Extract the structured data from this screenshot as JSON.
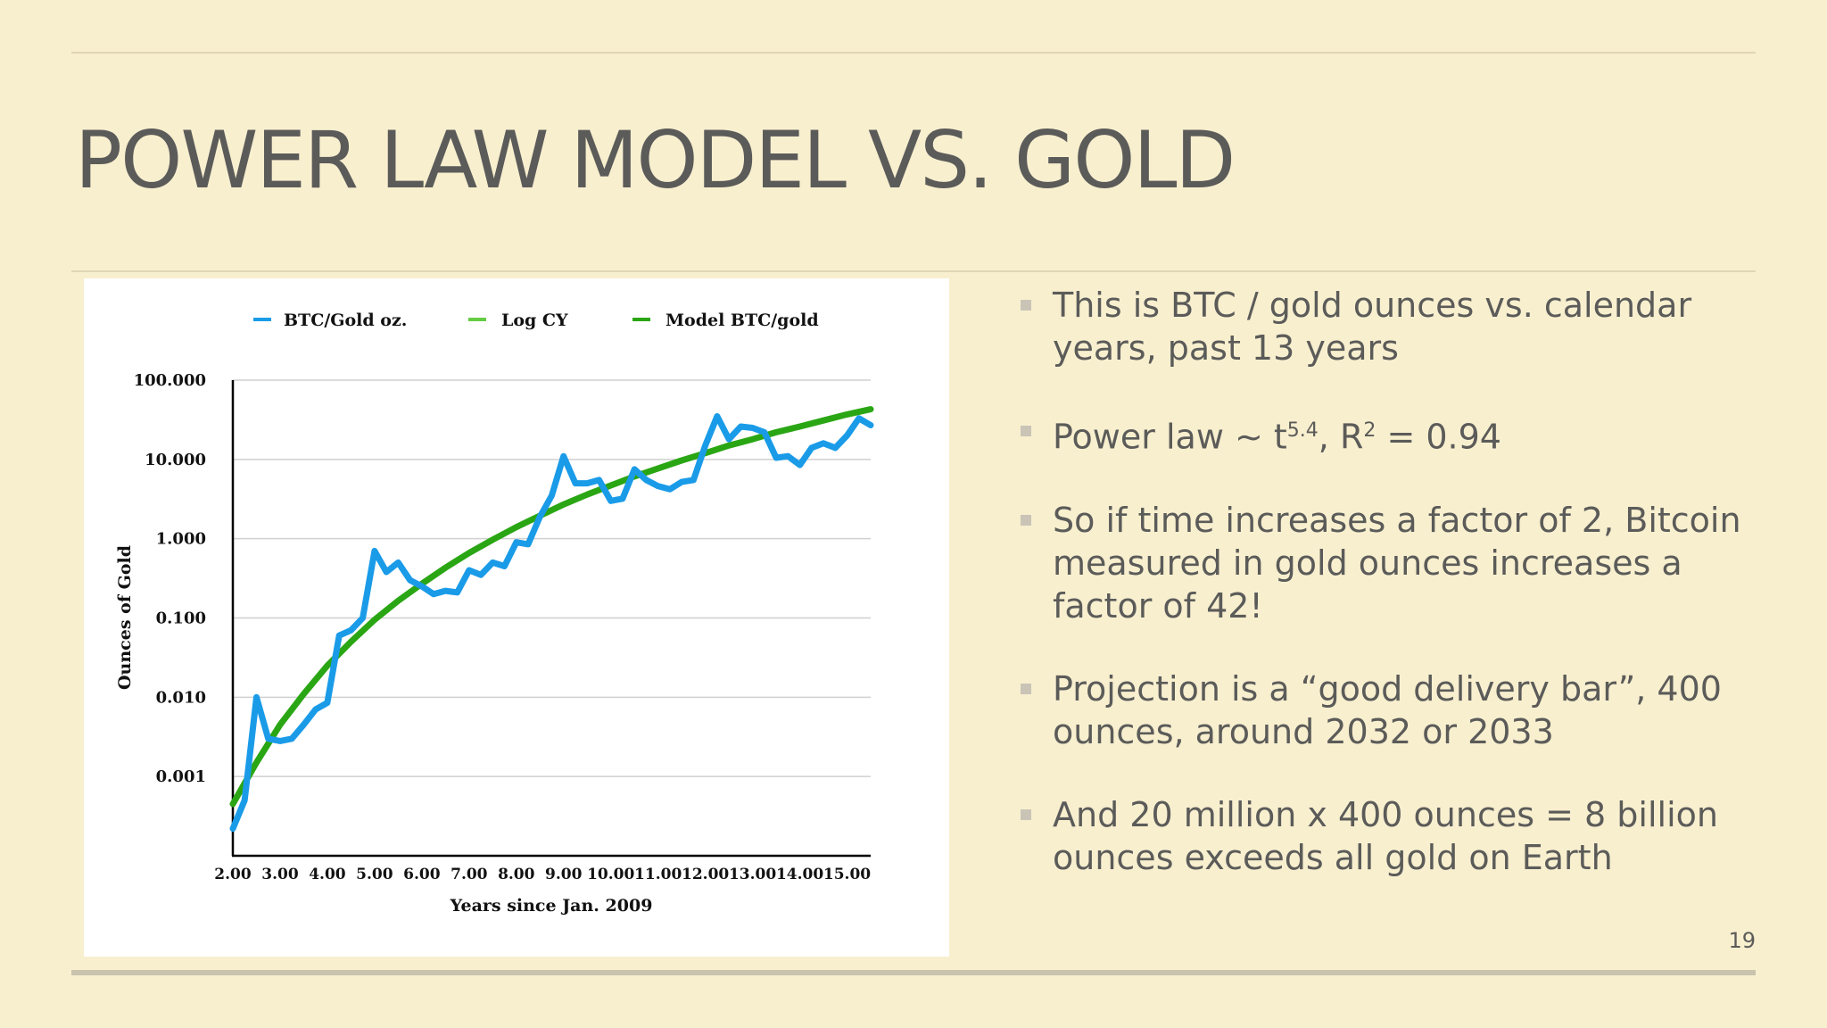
{
  "slide": {
    "title": "POWER LAW MODEL VS. GOLD",
    "page_number": "19"
  },
  "bullets": [
    "This is BTC / gold ounces vs. calendar years, past 13 years",
    "Power law ~ t5.4,  R2 = 0.94",
    "So if time increases a factor of 2, Bitcoin measured in gold ounces increases a factor of 42!",
    "Projection is a “good delivery bar”, 400 ounces, around 2032 or 2033",
    "And 20 million x 400 ounces = 8 billion ounces exceeds all gold on Earth"
  ],
  "bullet_rich": {
    "b2_prefix": "Power law ~ t",
    "b2_exp1": "5.4",
    "b2_mid": ",  R",
    "b2_exp2": "2",
    "b2_suffix": " = 0.94"
  },
  "chart_data": {
    "type": "line",
    "title": "",
    "xlabel": "Years since Jan. 2009",
    "ylabel": "Ounces of Gold",
    "y_scale": "log",
    "xlim": [
      2.0,
      15.5
    ],
    "ylim": [
      0.0001,
      100
    ],
    "x_ticks": [
      "2.00",
      "3.00",
      "4.00",
      "5.00",
      "6.00",
      "7.00",
      "8.00",
      "9.00",
      "10.00",
      "11.00",
      "12.00",
      "13.00",
      "14.00",
      "15.00"
    ],
    "x_tick_values": [
      2,
      3,
      4,
      5,
      6,
      7,
      8,
      9,
      10,
      11,
      12,
      13,
      14,
      15
    ],
    "y_ticks": [
      "100.000",
      "10.000",
      "1.000",
      "0.100",
      "0.010",
      "0.001"
    ],
    "y_tick_values": [
      100,
      10,
      1,
      0.1,
      0.01,
      0.001
    ],
    "grid": true,
    "legend_position": "top",
    "legend": [
      "BTC/Gold oz.",
      "Log CY",
      "Model BTC/gold"
    ],
    "colors": {
      "btc": "#1a9be8",
      "logcy": "#66cc44",
      "model": "#2aa614",
      "axis": "#000000",
      "grid": "#d0d0d0"
    },
    "series": [
      {
        "name": "BTC/Gold oz.",
        "x": [
          2.0,
          2.25,
          2.5,
          2.75,
          3.0,
          3.25,
          3.5,
          3.75,
          4.0,
          4.25,
          4.5,
          4.75,
          5.0,
          5.25,
          5.5,
          5.75,
          6.0,
          6.25,
          6.5,
          6.75,
          7.0,
          7.25,
          7.5,
          7.75,
          8.0,
          8.25,
          8.5,
          8.75,
          9.0,
          9.25,
          9.5,
          9.75,
          10.0,
          10.25,
          10.5,
          10.75,
          11.0,
          11.25,
          11.5,
          11.75,
          12.0,
          12.25,
          12.5,
          12.75,
          13.0,
          13.25,
          13.5,
          13.75,
          14.0,
          14.25,
          14.5,
          14.75,
          15.0,
          15.25,
          15.5
        ],
        "values": [
          0.00022,
          0.0005,
          0.01,
          0.003,
          0.0028,
          0.003,
          0.0045,
          0.007,
          0.0085,
          0.06,
          0.07,
          0.1,
          0.7,
          0.38,
          0.5,
          0.3,
          0.25,
          0.2,
          0.22,
          0.21,
          0.4,
          0.35,
          0.5,
          0.45,
          0.9,
          0.85,
          1.9,
          3.5,
          11,
          5,
          5,
          5.5,
          3,
          3.2,
          7.5,
          5.5,
          4.6,
          4.2,
          5.2,
          5.5,
          15,
          35,
          18,
          26,
          25,
          22,
          10.5,
          11,
          8.5,
          14,
          16,
          14,
          20,
          33,
          27
        ]
      },
      {
        "name": "Model BTC/gold",
        "x": [
          2.0,
          2.5,
          3.0,
          3.5,
          4.0,
          4.5,
          5.0,
          5.5,
          6.0,
          6.5,
          7.0,
          7.5,
          8.0,
          8.5,
          9.0,
          9.5,
          10.0,
          10.5,
          11.0,
          11.5,
          12.0,
          12.5,
          13.0,
          13.5,
          14.0,
          14.5,
          15.0,
          15.5
        ],
        "values": [
          0.00045,
          0.0015,
          0.0045,
          0.011,
          0.025,
          0.05,
          0.095,
          0.165,
          0.27,
          0.43,
          0.66,
          0.97,
          1.4,
          1.95,
          2.7,
          3.6,
          4.7,
          6.1,
          7.7,
          9.7,
          12,
          15,
          18,
          22,
          26,
          31,
          37,
          43
        ]
      }
    ]
  }
}
